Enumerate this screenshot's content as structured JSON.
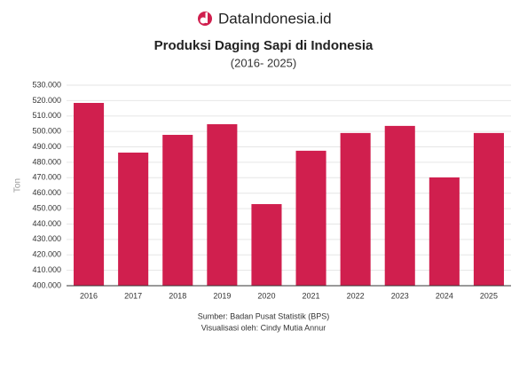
{
  "brand": "DataIndonesia.id",
  "chart_data": {
    "type": "bar",
    "title": "Produksi Daging Sapi di Indonesia",
    "subtitle": "(2016- 2025)",
    "y_label": "Ton",
    "categories": [
      "2016",
      "2017",
      "2018",
      "2019",
      "2020",
      "2021",
      "2022",
      "2023",
      "2024",
      "2025"
    ],
    "values": [
      518500,
      486300,
      497800,
      504700,
      452900,
      487500,
      499000,
      503600,
      470200,
      499000
    ],
    "color": "#d01f4e",
    "ylim": [
      400000,
      530000
    ],
    "yticks": [
      {
        "value": 400000,
        "label": "400.000"
      },
      {
        "value": 410000,
        "label": "410.000"
      },
      {
        "value": 420000,
        "label": "420.000"
      },
      {
        "value": 430000,
        "label": "430.000"
      },
      {
        "value": 440000,
        "label": "440.000"
      },
      {
        "value": 450000,
        "label": "450.000"
      },
      {
        "value": 460000,
        "label": "460.000"
      },
      {
        "value": 470000,
        "label": "470.000"
      },
      {
        "value": 480000,
        "label": "480.000"
      },
      {
        "value": 490000,
        "label": "490.000"
      },
      {
        "value": 500000,
        "label": "500.000"
      },
      {
        "value": 510000,
        "label": "510.000"
      },
      {
        "value": 520000,
        "label": "520.000"
      },
      {
        "value": 530000,
        "label": "530.000"
      }
    ],
    "grid": true,
    "source": [
      "Sumber: Badan Pusat Statistik (BPS)",
      "Visualisasi oleh: Cindy Mutia Annur"
    ]
  }
}
